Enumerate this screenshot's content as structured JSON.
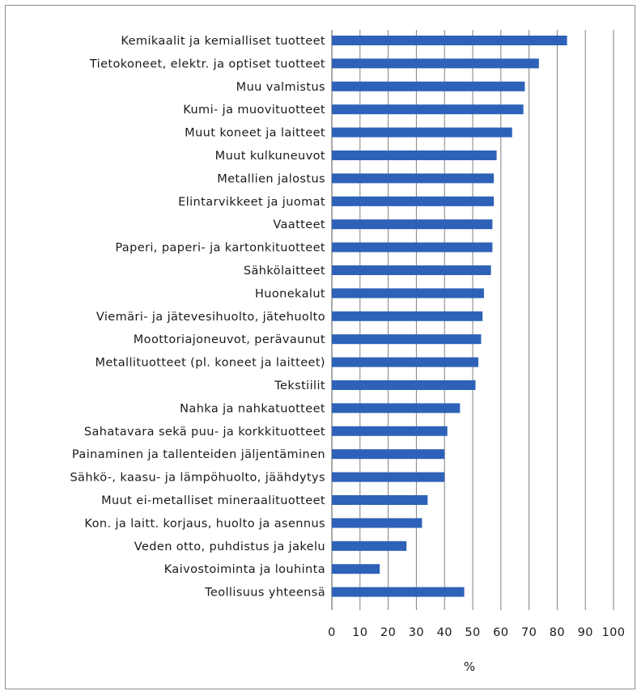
{
  "chart_data": {
    "type": "bar",
    "orientation": "horizontal",
    "categories": [
      "Kemikaalit ja kemialliset tuotteet",
      "Tietokoneet, elektr. ja optiset tuotteet",
      "Muu valmistus",
      "Kumi- ja muovituotteet",
      "Muut koneet ja laitteet",
      "Muut kulkuneuvot",
      "Metallien jalostus",
      "Elintarvikkeet ja juomat",
      "Vaatteet",
      "Paperi, paperi- ja kartonkituotteet",
      "Sähkölaitteet",
      "Huonekalut",
      "Viemäri- ja jätevesihuolto, jätehuolto",
      "Moottoriajoneuvot, perävaunut",
      "Metallituotteet (pl. koneet ja laitteet)",
      "Tekstiilit",
      "Nahka ja nahkatuotteet",
      "Sahatavara sekä puu- ja korkkituotteet",
      "Painaminen ja tallenteiden jäljentäminen",
      "Sähkö-, kaasu- ja lämpöhuolto, jäähdytys",
      "Muut ei-metalliset mineraalituotteet",
      "Kon. ja laitt. korjaus, huolto ja asennus",
      "Veden otto, puhdistus ja jakelu",
      "Kaivostoiminta ja louhinta",
      "Teollisuus yhteensä"
    ],
    "values": [
      83.5,
      73.5,
      68.5,
      68,
      64,
      58.5,
      57.5,
      57.5,
      57,
      57,
      56.5,
      54,
      53.5,
      53,
      52,
      51,
      45.5,
      41,
      40,
      40,
      34,
      32,
      26.5,
      17,
      47
    ],
    "xlim": [
      0,
      100
    ],
    "xticks": [
      "0",
      "10",
      "20",
      "30",
      "40",
      "50",
      "60",
      "70",
      "80",
      "90",
      "100"
    ],
    "xlabel": "%",
    "ylabel": "",
    "title": "",
    "grid": "vertical",
    "legend": "none",
    "bar_color": "#2e62b8",
    "grid_color": "#808080"
  }
}
